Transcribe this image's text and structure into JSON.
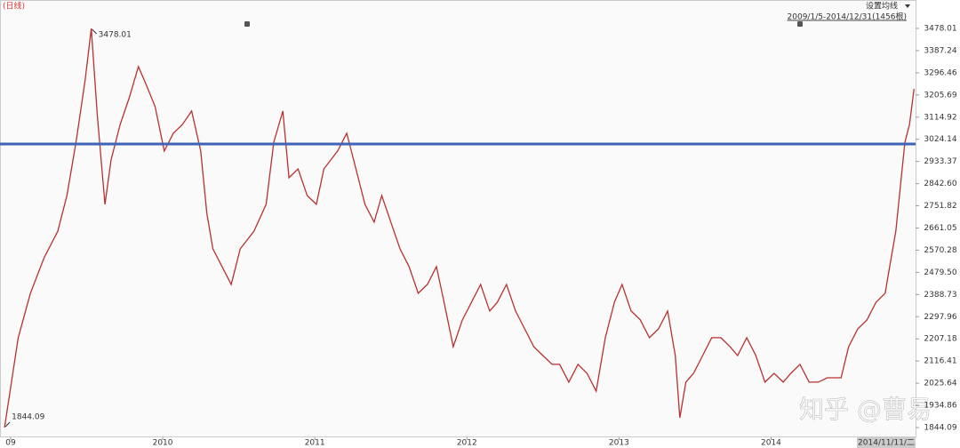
{
  "chart_data": {
    "type": "line",
    "period_label": "(日线)",
    "menu": "设置均线",
    "range_label": "2009/1/5-2014/12/31(1456根)",
    "cursor_label": "2014/11/11/二",
    "watermark": "知乎 @曹易",
    "xlim": [
      2008.93,
      2014.95
    ],
    "xticks": [
      {
        "value": 2009,
        "label": "09"
      },
      2010,
      2011,
      2012,
      2013,
      2014
    ],
    "ylim": [
      1804.1,
      3594.4
    ],
    "yticks": [
      1844.09,
      1934.86,
      2025.64,
      2116.41,
      2207.18,
      2297.96,
      2388.73,
      {
        "value": 2479.5,
        "label": "2479.50"
      },
      2570.28,
      2661.05,
      2751.82,
      {
        "value": 2842.6,
        "label": "2842.60"
      },
      2933.37,
      3024.14,
      3114.92,
      3205.69,
      3296.46,
      3387.24,
      3478.01
    ],
    "hline": 3005,
    "hline_color": "#3f63b5",
    "x": [
      2008.96,
      2009.05,
      2009.13,
      2009.22,
      2009.31,
      2009.37,
      2009.43,
      2009.49,
      2009.53,
      2009.57,
      2009.62,
      2009.66,
      2009.72,
      2009.78,
      2009.84,
      2009.89,
      2009.95,
      2010.01,
      2010.07,
      2010.13,
      2010.19,
      2010.25,
      2010.29,
      2010.33,
      2010.39,
      2010.45,
      2010.51,
      2010.6,
      2010.68,
      2010.73,
      2010.79,
      2010.83,
      2010.89,
      2010.95,
      2011.01,
      2011.06,
      2011.15,
      2011.21,
      2011.27,
      2011.33,
      2011.39,
      2011.44,
      2011.5,
      2011.56,
      2011.62,
      2011.68,
      2011.74,
      2011.8,
      2011.85,
      2011.91,
      2011.97,
      2012.03,
      2012.09,
      2012.15,
      2012.2,
      2012.26,
      2012.32,
      2012.38,
      2012.44,
      2012.5,
      2012.56,
      2012.61,
      2012.67,
      2012.73,
      2012.79,
      2012.85,
      2012.91,
      2012.97,
      2013.02,
      2013.08,
      2013.14,
      2013.2,
      2013.26,
      2013.32,
      2013.37,
      2013.4,
      2013.44,
      2013.49,
      2013.55,
      2013.61,
      2013.67,
      2013.73,
      2013.78,
      2013.84,
      2013.9,
      2013.96,
      2014.02,
      2014.08,
      2014.13,
      2014.19,
      2014.25,
      2014.31,
      2014.37,
      2014.46,
      2014.51,
      2014.57,
      2014.63,
      2014.69,
      2014.75,
      2014.78,
      2014.82,
      2014.85,
      2014.88,
      2014.91,
      2014.94
    ],
    "series": [
      {
        "color": "#b8312f",
        "values": [
          1844.09,
          2212,
          2394,
          2539,
          2648,
          2794,
          3012,
          3267,
          3478.01,
          3121,
          2758,
          2939,
          3085,
          3194,
          3322,
          3249,
          3158,
          2976,
          3049,
          3085,
          3140,
          2976,
          2721,
          2576,
          2503,
          2430,
          2576,
          2648,
          2758,
          3012,
          3140,
          2867,
          2903,
          2794,
          2758,
          2903,
          2976,
          3049,
          2903,
          2758,
          2685,
          2794,
          2685,
          2576,
          2503,
          2394,
          2430,
          2503,
          2357,
          2175,
          2284,
          2357,
          2430,
          2321,
          2357,
          2430,
          2321,
          2248,
          2175,
          2139,
          2103,
          2103,
          2030,
          2103,
          2066,
          1993,
          2212,
          2357,
          2430,
          2321,
          2285,
          2212,
          2248,
          2321,
          2139,
          1884,
          2030,
          2066,
          2139,
          2212,
          2212,
          2175,
          2139,
          2212,
          2139,
          2030,
          2066,
          2030,
          2066,
          2103,
          2030,
          2030,
          2048,
          2048,
          2175,
          2248,
          2284,
          2357,
          2394,
          2503,
          2648,
          2830,
          3012,
          3085,
          3231
        ]
      }
    ]
  }
}
